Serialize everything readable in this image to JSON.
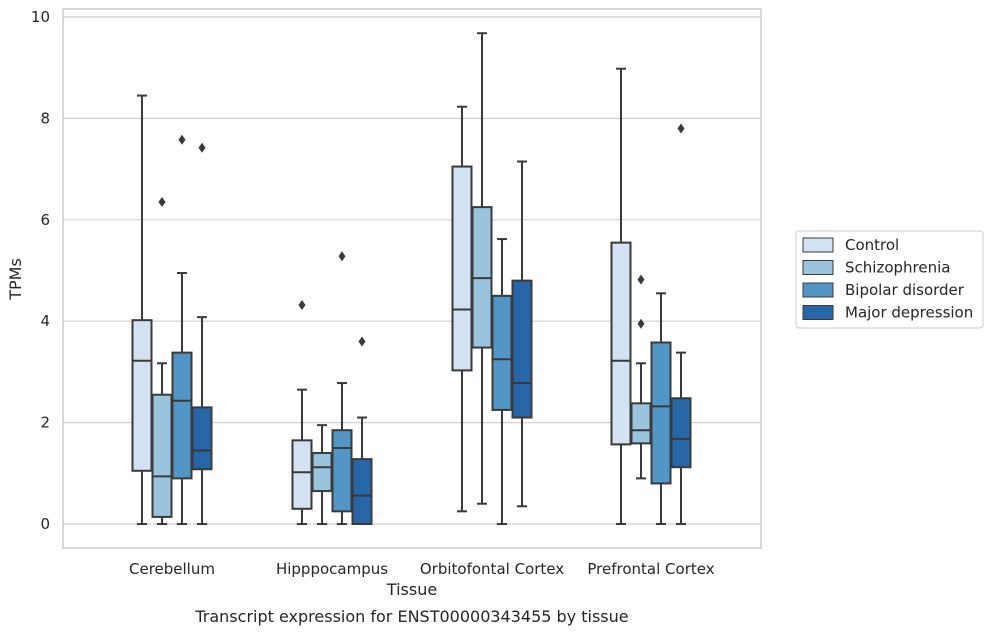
{
  "chart_data": {
    "type": "box",
    "title": "",
    "caption": "Transcript expression for ENST00000343455 by tissue",
    "xlabel": "Tissue",
    "ylabel": "TPMs",
    "ylim": [
      -0.45,
      10.15
    ],
    "yticks": [
      0,
      2,
      4,
      6,
      8,
      10
    ],
    "grid": "horizontal",
    "legend_position": "right",
    "categories": [
      "Cerebellum",
      "Hipppocampus",
      "Orbitofontal Cortex",
      "Prefrontal Cortex"
    ],
    "series": [
      {
        "name": "Control",
        "color": "#d2e2f2",
        "boxes": [
          {
            "whislo": 0.0,
            "q1": 1.05,
            "med": 3.22,
            "q3": 4.02,
            "whishi": 8.45,
            "fliers": []
          },
          {
            "whislo": 0.0,
            "q1": 0.3,
            "med": 1.02,
            "q3": 1.65,
            "whishi": 2.65,
            "fliers": [
              4.32
            ]
          },
          {
            "whislo": 0.25,
            "q1": 3.03,
            "med": 4.23,
            "q3": 7.05,
            "whishi": 8.23,
            "fliers": []
          },
          {
            "whislo": 0.0,
            "q1": 1.57,
            "med": 3.22,
            "q3": 5.55,
            "whishi": 8.98,
            "fliers": []
          }
        ]
      },
      {
        "name": "Schizophrenia",
        "color": "#9ac3dd",
        "boxes": [
          {
            "whislo": 0.0,
            "q1": 0.14,
            "med": 0.94,
            "q3": 2.55,
            "whishi": 3.17,
            "fliers": [
              6.35
            ]
          },
          {
            "whislo": 0.0,
            "q1": 0.65,
            "med": 1.12,
            "q3": 1.4,
            "whishi": 1.95,
            "fliers": []
          },
          {
            "whislo": 0.4,
            "q1": 3.48,
            "med": 4.85,
            "q3": 6.25,
            "whishi": 9.68,
            "fliers": []
          },
          {
            "whislo": 0.9,
            "q1": 1.59,
            "med": 1.85,
            "q3": 2.38,
            "whishi": 3.17,
            "fliers": [
              3.95,
              4.82
            ]
          }
        ]
      },
      {
        "name": "Bipolar disorder",
        "color": "#5296c5",
        "boxes": [
          {
            "whislo": 0.0,
            "q1": 0.9,
            "med": 2.43,
            "q3": 3.38,
            "whishi": 4.95,
            "fliers": [
              7.58
            ]
          },
          {
            "whislo": 0.0,
            "q1": 0.25,
            "med": 1.5,
            "q3": 1.85,
            "whishi": 2.78,
            "fliers": [
              5.28
            ]
          },
          {
            "whislo": 0.0,
            "q1": 2.25,
            "med": 3.25,
            "q3": 4.5,
            "whishi": 5.62,
            "fliers": []
          },
          {
            "whislo": 0.0,
            "q1": 0.8,
            "med": 2.32,
            "q3": 3.58,
            "whishi": 4.55,
            "fliers": []
          }
        ]
      },
      {
        "name": "Major depression",
        "color": "#2767a8",
        "boxes": [
          {
            "whislo": 0.0,
            "q1": 1.08,
            "med": 1.45,
            "q3": 2.3,
            "whishi": 4.08,
            "fliers": [
              7.42
            ]
          },
          {
            "whislo": 0.0,
            "q1": 0.0,
            "med": 0.56,
            "q3": 1.28,
            "whishi": 2.1,
            "fliers": [
              3.6
            ]
          },
          {
            "whislo": 0.35,
            "q1": 2.1,
            "med": 2.78,
            "q3": 4.8,
            "whishi": 7.15,
            "fliers": []
          },
          {
            "whislo": 0.0,
            "q1": 1.12,
            "med": 1.68,
            "q3": 2.48,
            "whishi": 3.38,
            "fliers": [
              7.8
            ]
          }
        ]
      }
    ]
  }
}
